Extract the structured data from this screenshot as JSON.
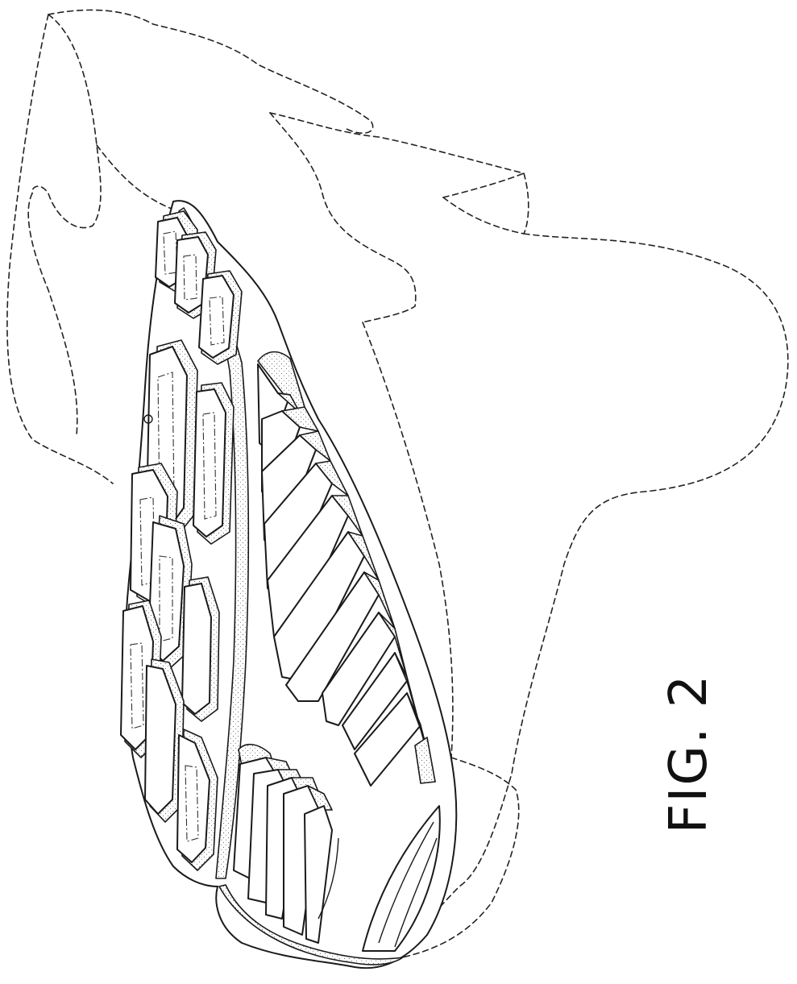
{
  "figure": {
    "label": "FIG. 2"
  }
}
